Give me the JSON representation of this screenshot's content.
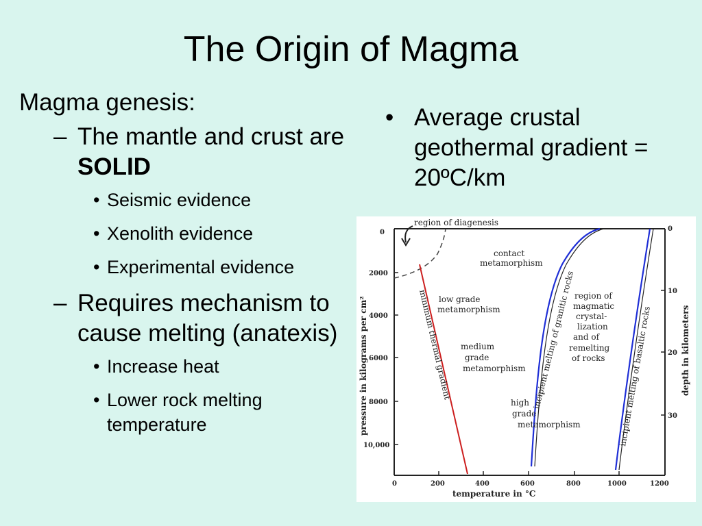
{
  "title": "The Origin of Magma",
  "left": {
    "heading": "Magma genesis:",
    "sub1": {
      "dash": "–",
      "text_prefix": "The mantle and crust are",
      "text_bold": "SOLID"
    },
    "sub1_bullets": [
      "Seismic evidence",
      "Xenolith evidence",
      "Experimental evidence"
    ],
    "sub2": {
      "dash": "–",
      "text": "Requires mechanism to cause melting (anatexis)"
    },
    "sub2_bullets": [
      "Increase heat",
      "Lower rock melting temperature"
    ]
  },
  "right": {
    "bullet_glyph": "•",
    "bullet": "Average crustal geothermal gradient = 20ºC/km"
  },
  "figure": {
    "x_axis_label": "temperature in °C",
    "y_left_label": "pressure in kilograms per cm²",
    "y_right_label": "depth in kilometers",
    "x_ticks": [
      "0",
      "200",
      "400",
      "600",
      "800",
      "1000",
      "1200"
    ],
    "y_left_ticks": [
      "0",
      "2000",
      "4000",
      "6000",
      "8000",
      "10,000"
    ],
    "y_right_ticks": [
      "0",
      "10",
      "20",
      "30"
    ],
    "regions": {
      "diagenesis": "region of diagenesis",
      "contact_1": "contact",
      "contact_2": "metamorphism",
      "low_1": "low grade",
      "low_2": "metamorphism",
      "medium_1": "medium",
      "medium_2": "grade",
      "medium_3": "metamorphism",
      "high_1": "high",
      "high_2": "grade",
      "high_3": "metamorphism",
      "magmatic_1": "region of",
      "magmatic_2": "magmatic",
      "magmatic_3": "crystal-",
      "magmatic_4": "lization",
      "magmatic_5": "and of",
      "magmatic_6": "remelting",
      "magmatic_7": "of rocks"
    },
    "curves": {
      "min_gradient": "minimum thermal gradient",
      "granitic": "incipient melting of granitic rocks",
      "basaltic": "incipient melting of basaltic rocks"
    },
    "colors": {
      "min_gradient": "#cc1f1f",
      "melting": "#1f2fd6"
    }
  }
}
